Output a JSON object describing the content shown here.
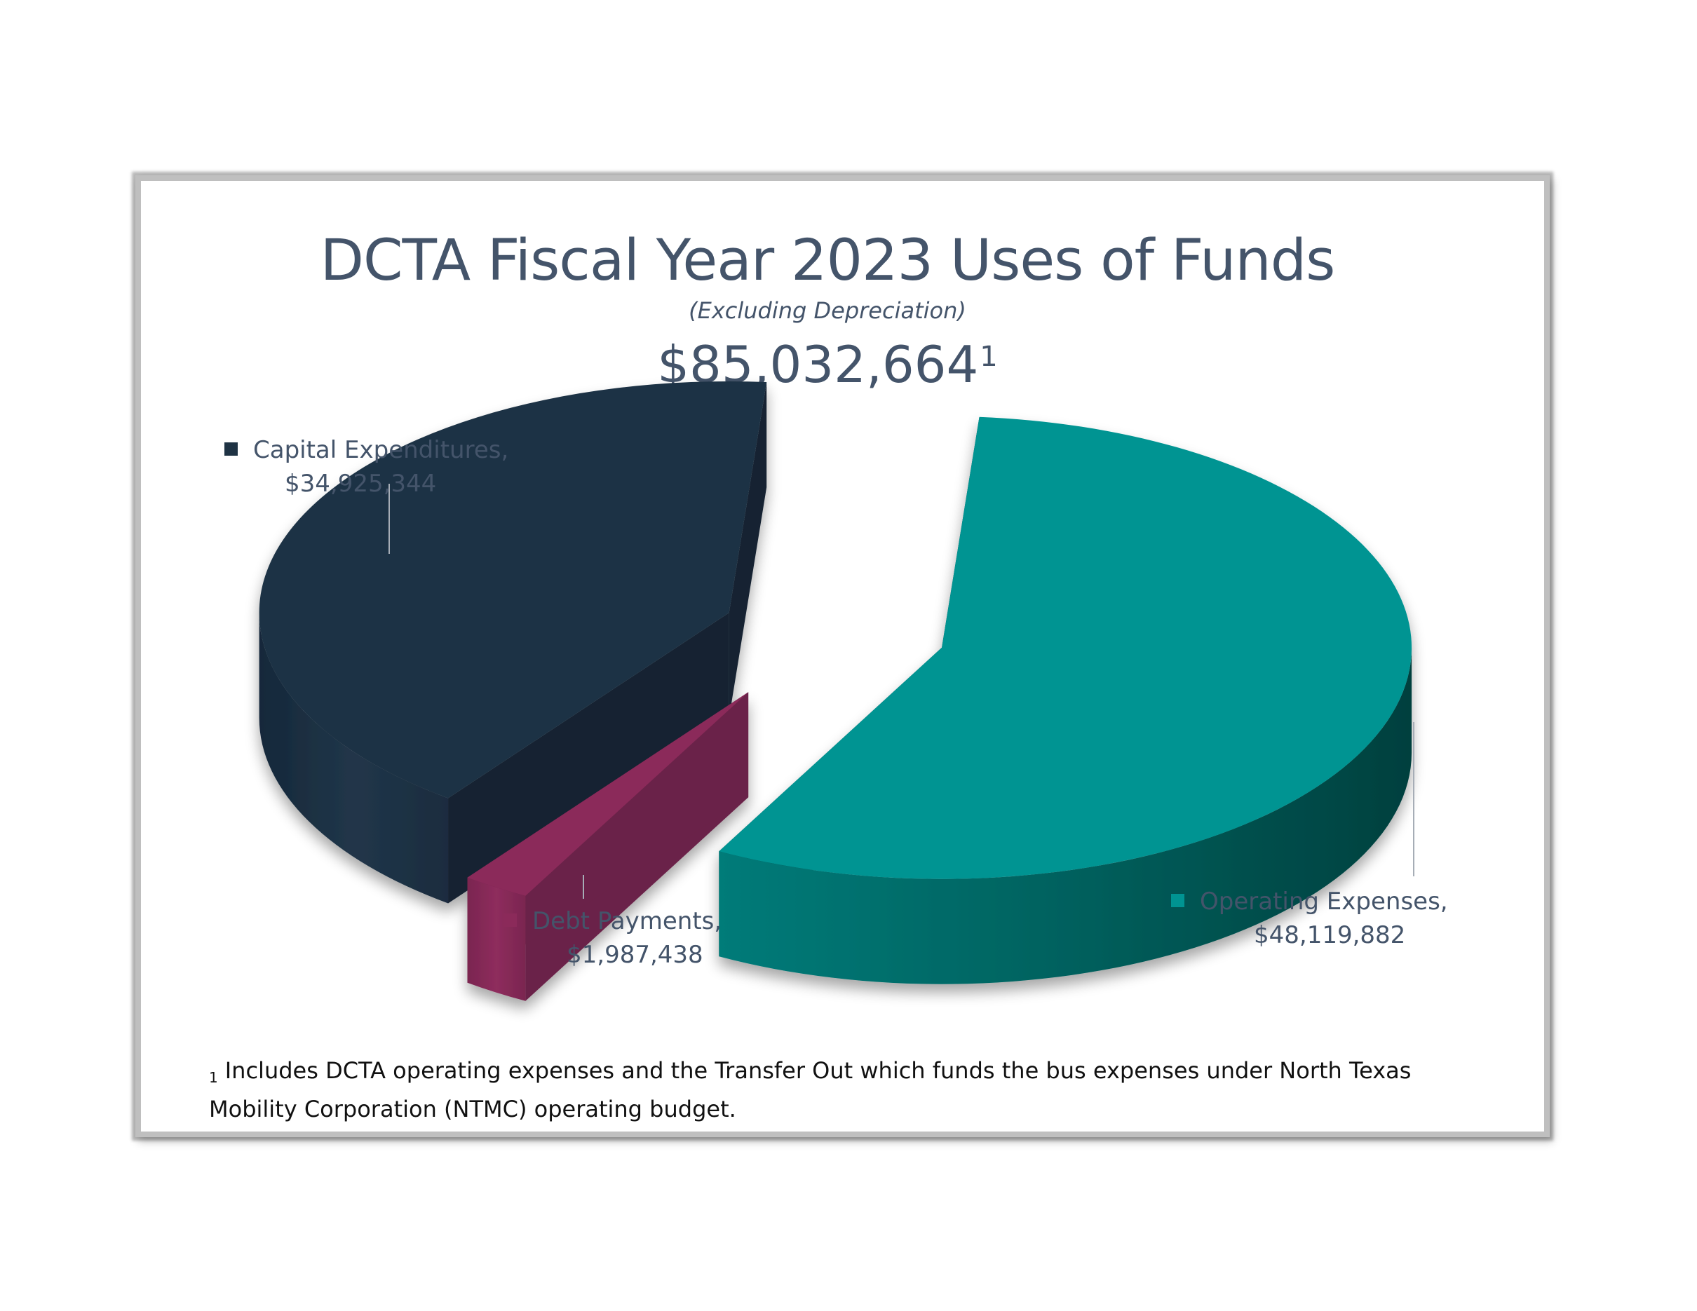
{
  "chart_data": {
    "type": "pie",
    "title": "DCTA Fiscal Year 2023 Uses of Funds",
    "subtitle": "(Excluding Depreciation)",
    "total_label": "$85,032,664",
    "total_superscript": "1",
    "slices": [
      {
        "name": "Capital Expenditures,",
        "value": 34925344,
        "value_label": "$34,925,344",
        "color": "#1f3344"
      },
      {
        "name": "Debt Payments,",
        "value": 1987438,
        "value_label": "$1,987,438",
        "color": "#8b2a5a"
      },
      {
        "name": "Operating Expenses,",
        "value": 48119882,
        "value_label": "$48,119,882",
        "color": "#009492"
      }
    ],
    "legend": "data-labels-with-leader-lines",
    "footnote_mark": "1",
    "footnote": "Includes DCTA operating expenses and the Transfer Out which funds the bus expenses under North Texas Mobility Corporation (NTMC) operating budget."
  }
}
